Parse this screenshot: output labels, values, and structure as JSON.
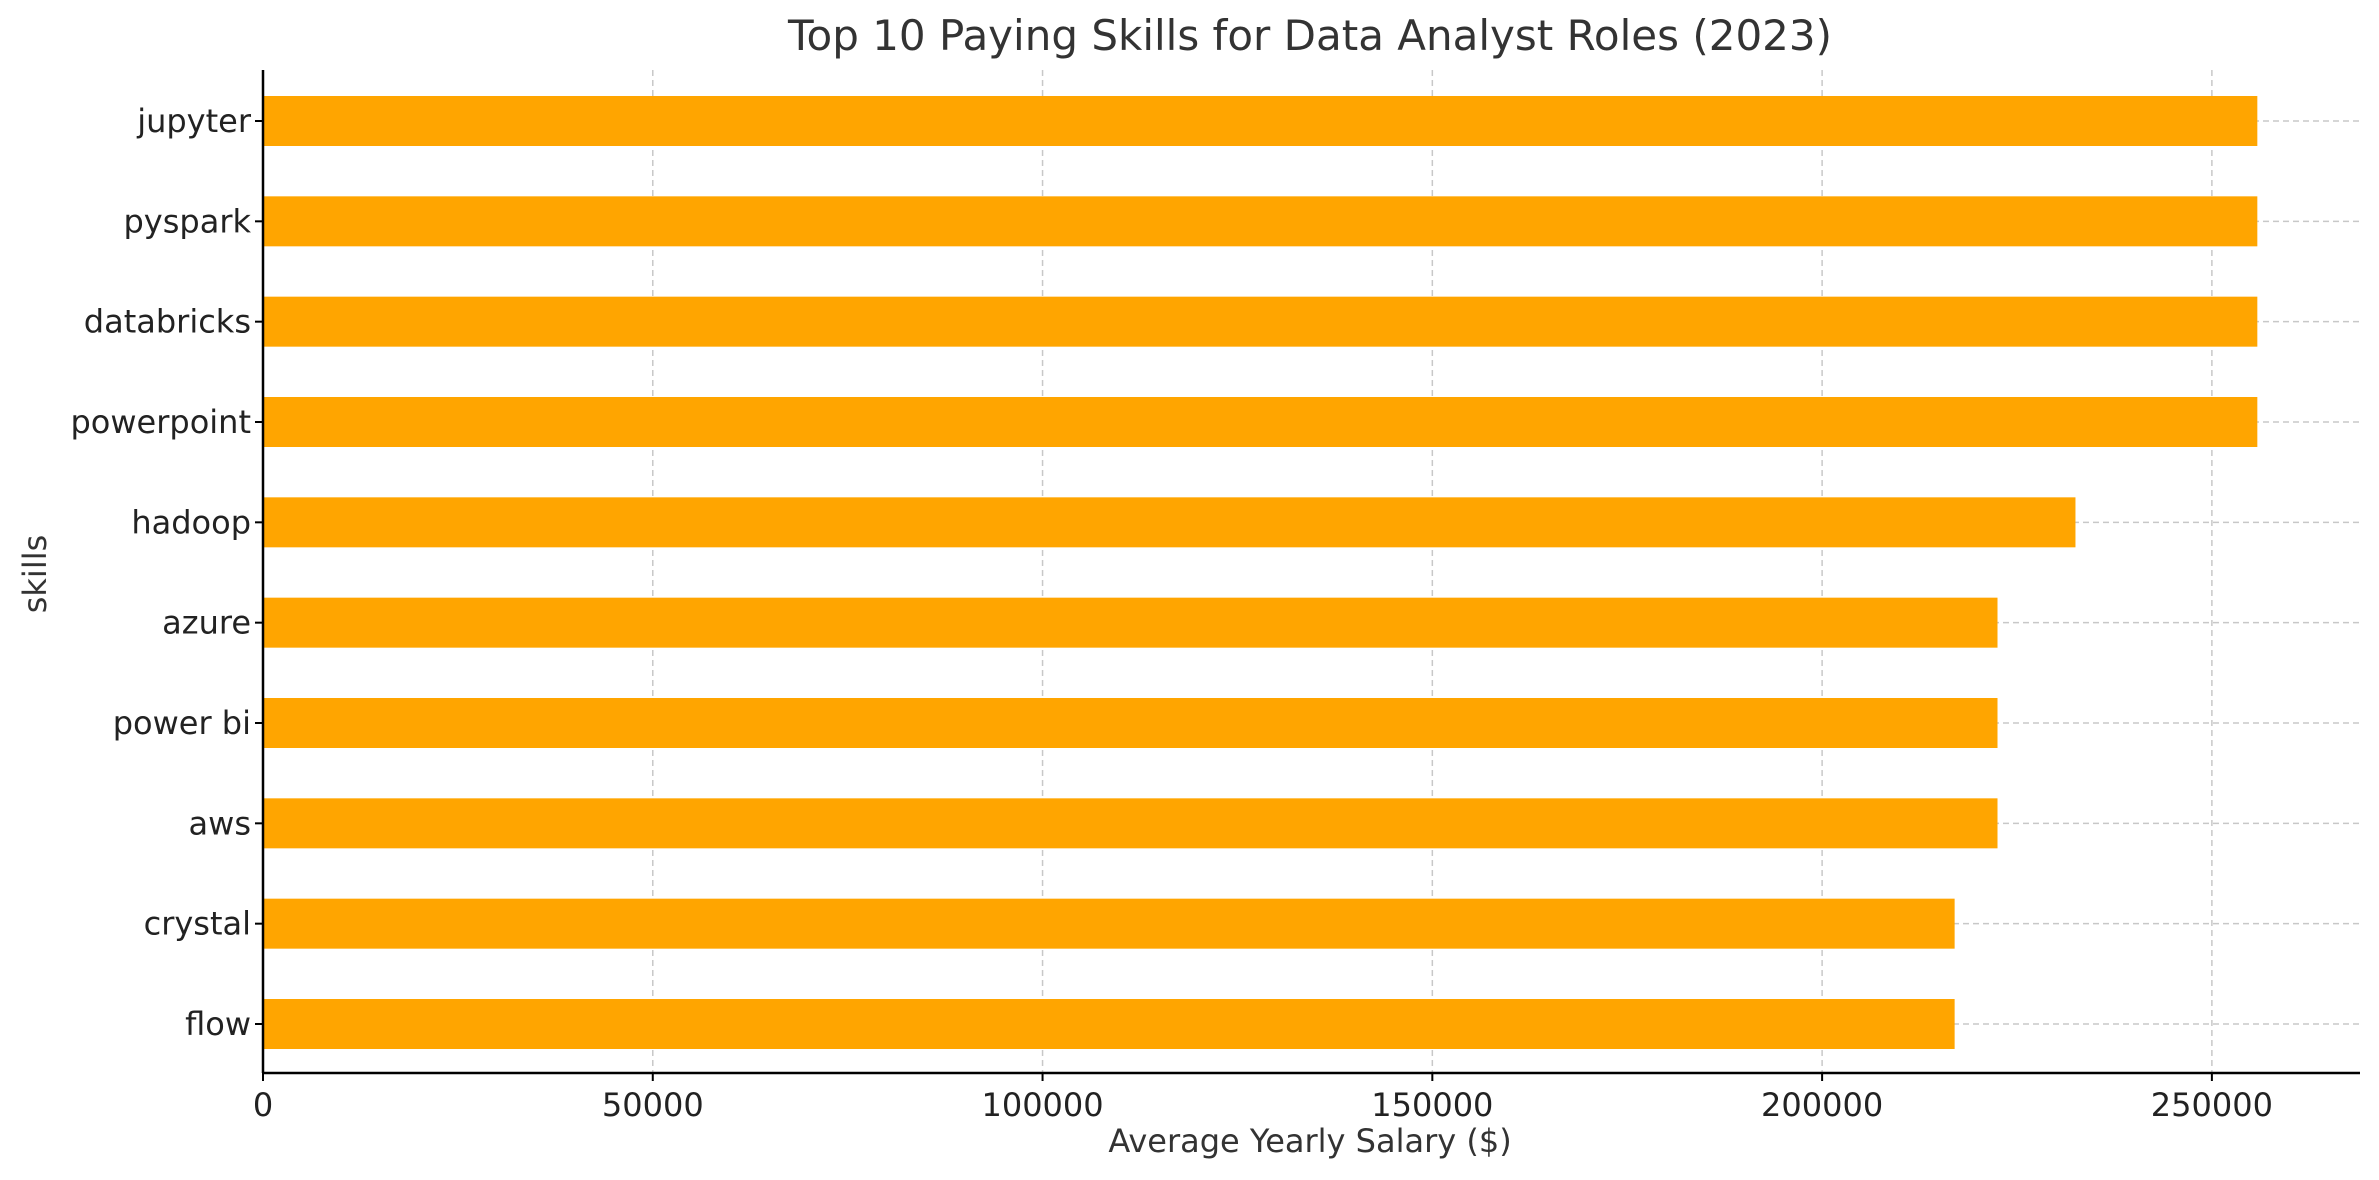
{
  "chart_data": {
    "type": "bar",
    "orientation": "horizontal",
    "title": "Top 10 Paying Skills for Data Analyst Roles (2023)",
    "xlabel": "Average Yearly Salary ($)",
    "ylabel": "skills",
    "categories": [
      "jupyter",
      "pyspark",
      "databricks",
      "powerpoint",
      "hadoop",
      "azure",
      "power bi",
      "aws",
      "crystal",
      "flow"
    ],
    "values": [
      255829.5,
      255829.5,
      255829.5,
      255829.5,
      232500,
      222500,
      222500,
      222500,
      217000,
      217000
    ],
    "xlim": [
      0,
      269000
    ],
    "xticks": [
      0,
      50000,
      100000,
      150000,
      200000,
      250000
    ],
    "xtick_labels": [
      "0",
      "50000",
      "100000",
      "150000",
      "200000",
      "250000"
    ],
    "grid": true,
    "bar_color": "#FFA500"
  }
}
